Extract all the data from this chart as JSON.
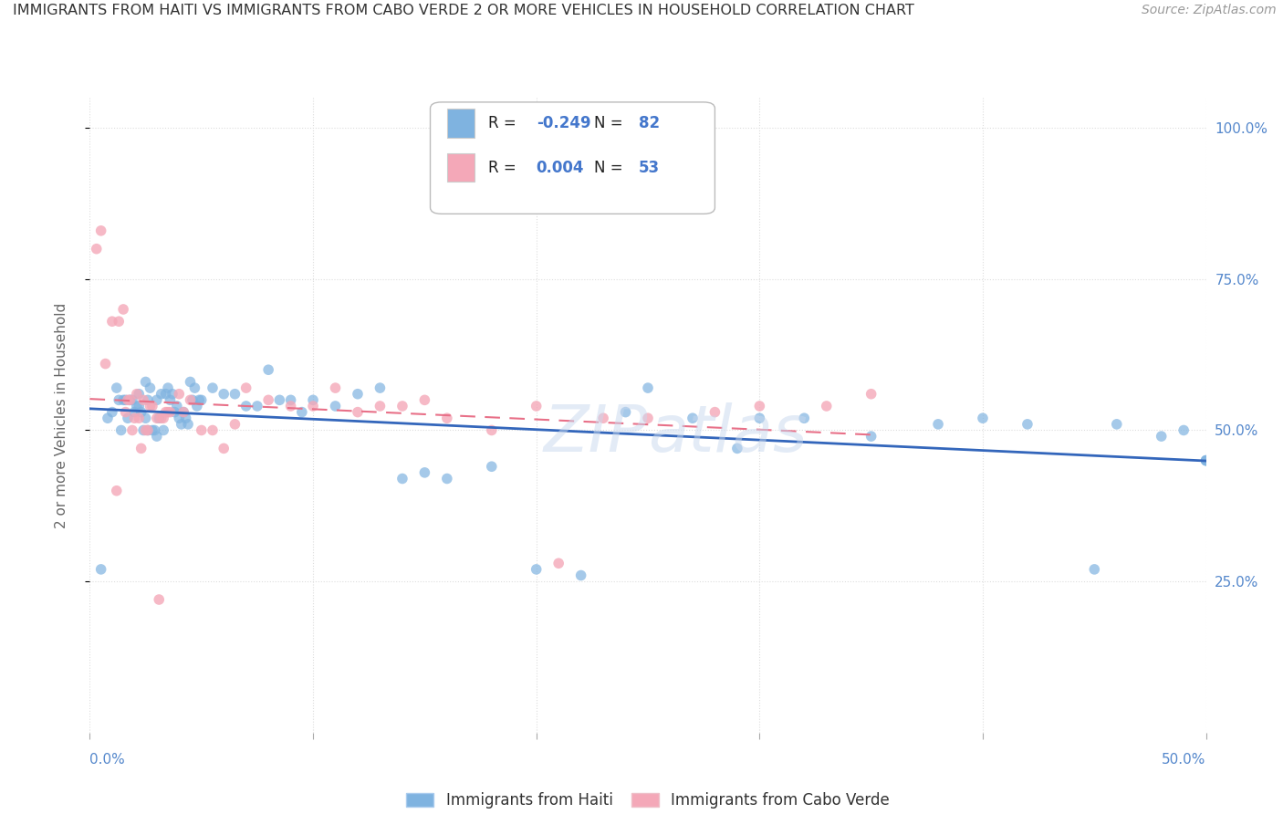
{
  "title": "IMMIGRANTS FROM HAITI VS IMMIGRANTS FROM CABO VERDE 2 OR MORE VEHICLES IN HOUSEHOLD CORRELATION CHART",
  "source": "Source: ZipAtlas.com",
  "ylabel": "2 or more Vehicles in Household",
  "xlim": [
    0.0,
    0.5
  ],
  "ylim": [
    0.0,
    1.05
  ],
  "xtick_labels": [
    "0.0%",
    "",
    "",
    "",
    "",
    "50.0%"
  ],
  "xtick_vals": [
    0.0,
    0.1,
    0.2,
    0.3,
    0.4,
    0.5
  ],
  "ytick_labels": [
    "25.0%",
    "50.0%",
    "75.0%",
    "100.0%"
  ],
  "ytick_vals": [
    0.25,
    0.5,
    0.75,
    1.0
  ],
  "haiti_color": "#7fb3e0",
  "cabo_verde_color": "#f4a8b8",
  "haiti_line_color": "#3366bb",
  "cabo_verde_line_color": "#e87088",
  "haiti_R": -0.249,
  "haiti_N": 82,
  "cabo_verde_R": 0.004,
  "cabo_verde_N": 53,
  "watermark": "ZIPatlas",
  "legend_entries": [
    "Immigrants from Haiti",
    "Immigrants from Cabo Verde"
  ],
  "haiti_scatter_x": [
    0.005,
    0.008,
    0.01,
    0.012,
    0.013,
    0.014,
    0.015,
    0.016,
    0.017,
    0.018,
    0.019,
    0.02,
    0.021,
    0.022,
    0.022,
    0.023,
    0.024,
    0.025,
    0.025,
    0.026,
    0.026,
    0.027,
    0.028,
    0.029,
    0.03,
    0.03,
    0.031,
    0.032,
    0.033,
    0.034,
    0.035,
    0.036,
    0.037,
    0.038,
    0.039,
    0.04,
    0.041,
    0.042,
    0.043,
    0.044,
    0.045,
    0.046,
    0.047,
    0.048,
    0.049,
    0.05,
    0.055,
    0.06,
    0.065,
    0.07,
    0.075,
    0.08,
    0.085,
    0.09,
    0.095,
    0.1,
    0.11,
    0.12,
    0.13,
    0.14,
    0.15,
    0.16,
    0.18,
    0.2,
    0.22,
    0.24,
    0.25,
    0.27,
    0.29,
    0.3,
    0.32,
    0.35,
    0.38,
    0.4,
    0.42,
    0.45,
    0.46,
    0.48,
    0.49,
    0.5,
    0.5,
    0.5
  ],
  "haiti_scatter_y": [
    0.27,
    0.52,
    0.53,
    0.57,
    0.55,
    0.5,
    0.55,
    0.55,
    0.52,
    0.55,
    0.55,
    0.53,
    0.54,
    0.54,
    0.56,
    0.53,
    0.5,
    0.52,
    0.58,
    0.5,
    0.55,
    0.57,
    0.5,
    0.5,
    0.49,
    0.55,
    0.52,
    0.56,
    0.5,
    0.56,
    0.57,
    0.55,
    0.56,
    0.53,
    0.54,
    0.52,
    0.51,
    0.53,
    0.52,
    0.51,
    0.58,
    0.55,
    0.57,
    0.54,
    0.55,
    0.55,
    0.57,
    0.56,
    0.56,
    0.54,
    0.54,
    0.6,
    0.55,
    0.55,
    0.53,
    0.55,
    0.54,
    0.56,
    0.57,
    0.42,
    0.43,
    0.42,
    0.44,
    0.27,
    0.26,
    0.53,
    0.57,
    0.52,
    0.47,
    0.52,
    0.52,
    0.49,
    0.51,
    0.52,
    0.51,
    0.27,
    0.51,
    0.49,
    0.5,
    0.45,
    0.45,
    0.45
  ],
  "cabo_verde_scatter_x": [
    0.003,
    0.005,
    0.007,
    0.01,
    0.012,
    0.013,
    0.015,
    0.016,
    0.017,
    0.018,
    0.019,
    0.02,
    0.021,
    0.022,
    0.023,
    0.024,
    0.025,
    0.026,
    0.027,
    0.028,
    0.03,
    0.031,
    0.032,
    0.033,
    0.034,
    0.035,
    0.036,
    0.04,
    0.042,
    0.045,
    0.05,
    0.055,
    0.06,
    0.065,
    0.07,
    0.08,
    0.09,
    0.1,
    0.11,
    0.12,
    0.13,
    0.14,
    0.15,
    0.16,
    0.18,
    0.2,
    0.21,
    0.23,
    0.25,
    0.28,
    0.3,
    0.33,
    0.35
  ],
  "cabo_verde_scatter_y": [
    0.8,
    0.83,
    0.61,
    0.68,
    0.4,
    0.68,
    0.7,
    0.53,
    0.55,
    0.55,
    0.5,
    0.52,
    0.56,
    0.52,
    0.47,
    0.55,
    0.5,
    0.5,
    0.54,
    0.54,
    0.52,
    0.22,
    0.52,
    0.52,
    0.53,
    0.53,
    0.53,
    0.56,
    0.53,
    0.55,
    0.5,
    0.5,
    0.47,
    0.51,
    0.57,
    0.55,
    0.54,
    0.54,
    0.57,
    0.53,
    0.54,
    0.54,
    0.55,
    0.52,
    0.5,
    0.54,
    0.28,
    0.52,
    0.52,
    0.53,
    0.54,
    0.54,
    0.56
  ]
}
